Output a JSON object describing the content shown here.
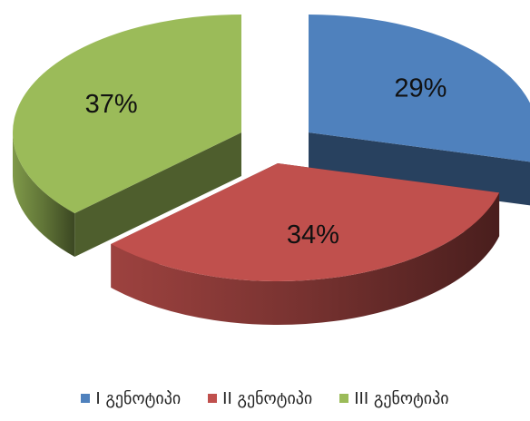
{
  "chart_data": {
    "type": "pie",
    "title": "",
    "categories": [
      "I გენოტიპი",
      "II გენოტიპი",
      "III გენოტიპი"
    ],
    "values": [
      29,
      34,
      37
    ],
    "value_labels": [
      "29%",
      "34%",
      "37%"
    ],
    "colors": [
      "#4f81bd",
      "#c0504d",
      "#9bbb59"
    ],
    "legend_position": "bottom",
    "style": "3d-exploded"
  }
}
